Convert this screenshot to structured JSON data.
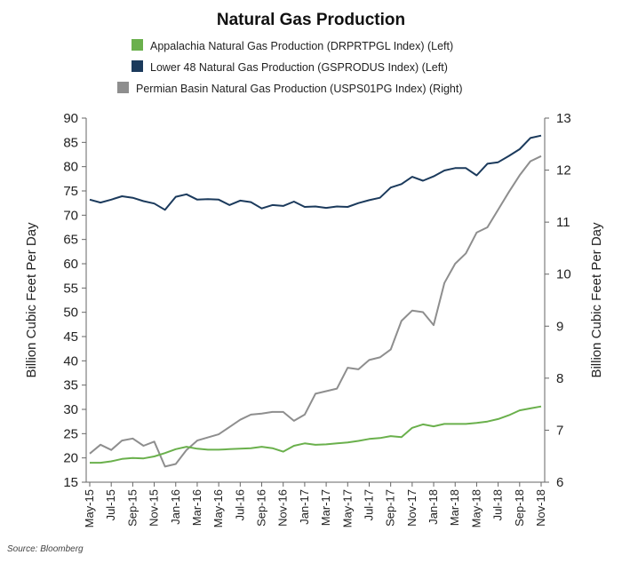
{
  "chart_data": {
    "type": "line",
    "title": "Natural Gas Production",
    "source": "Source: Bloomberg",
    "ylabel_left": "Billion Cubic Feet Per Day",
    "ylabel_right": "Billion Cubic Feet Per Day",
    "ylim_left": [
      15,
      90
    ],
    "ylim_right": [
      6,
      13
    ],
    "yticks_left": [
      "15",
      "20",
      "25",
      "30",
      "35",
      "40",
      "45",
      "50",
      "55",
      "60",
      "65",
      "70",
      "75",
      "80",
      "85",
      "90"
    ],
    "yticks_right": [
      "6",
      "7",
      "8",
      "9",
      "10",
      "11",
      "12",
      "13"
    ],
    "x_tick_labels": [
      "May-15",
      "Jul-15",
      "Sep-15",
      "Nov-15",
      "Jan-16",
      "Mar-16",
      "May-16",
      "Jul-16",
      "Sep-16",
      "Nov-16",
      "Jan-17",
      "Mar-17",
      "May-17",
      "Jul-17",
      "Sep-17",
      "Nov-17",
      "Jan-18",
      "Mar-18",
      "May-18",
      "Jul-18",
      "Sep-18",
      "Nov-18"
    ],
    "x": [
      "May-15",
      "Jun-15",
      "Jul-15",
      "Aug-15",
      "Sep-15",
      "Oct-15",
      "Nov-15",
      "Dec-15",
      "Jan-16",
      "Feb-16",
      "Mar-16",
      "Apr-16",
      "May-16",
      "Jun-16",
      "Jul-16",
      "Aug-16",
      "Sep-16",
      "Oct-16",
      "Nov-16",
      "Dec-16",
      "Jan-17",
      "Feb-17",
      "Mar-17",
      "Apr-17",
      "May-17",
      "Jun-17",
      "Jul-17",
      "Aug-17",
      "Sep-17",
      "Oct-17",
      "Nov-17",
      "Dec-17",
      "Jan-18",
      "Feb-18",
      "Mar-18",
      "Apr-18",
      "May-18",
      "Jun-18",
      "Jul-18",
      "Aug-18",
      "Sep-18",
      "Oct-18",
      "Nov-18"
    ],
    "legend_placement": "top",
    "grid": false,
    "series": [
      {
        "name": "Appalachia Natural Gas Production (DRPRTPGL Index) (Left)",
        "axis": "left",
        "color": "#6ab04c",
        "values": [
          19.0,
          19.0,
          19.3,
          19.8,
          20.0,
          19.9,
          20.3,
          21.0,
          21.8,
          22.3,
          21.9,
          21.7,
          21.7,
          21.8,
          21.9,
          22.0,
          22.3,
          22.0,
          21.3,
          22.5,
          23.0,
          22.7,
          22.8,
          23.0,
          23.2,
          23.5,
          23.9,
          24.1,
          24.5,
          24.3,
          26.2,
          26.9,
          26.5,
          27.0,
          27.0,
          27.0,
          27.2,
          27.5,
          28.0,
          28.8,
          29.8,
          30.2,
          30.6
        ]
      },
      {
        "name": "Lower 48 Natural Gas Production (GSPRODUS Index) (Left)",
        "axis": "left",
        "color": "#1b3a5c",
        "values": [
          73.2,
          72.6,
          73.2,
          73.9,
          73.6,
          72.9,
          72.4,
          71.1,
          73.8,
          74.3,
          73.2,
          73.3,
          73.2,
          72.1,
          73.0,
          72.7,
          71.4,
          72.1,
          71.9,
          72.8,
          71.7,
          71.8,
          71.5,
          71.8,
          71.7,
          72.5,
          73.1,
          73.6,
          75.7,
          76.4,
          77.9,
          77.1,
          78.0,
          79.2,
          79.7,
          79.7,
          78.2,
          80.6,
          80.9,
          82.2,
          83.6,
          85.9,
          86.4
        ]
      },
      {
        "name": "Permian Basin Natural Gas Production (USPS01PG Index) (Right)",
        "axis": "right",
        "color": "#8e8e8e",
        "values": [
          6.55,
          6.72,
          6.62,
          6.8,
          6.84,
          6.7,
          6.78,
          6.3,
          6.35,
          6.62,
          6.8,
          6.86,
          6.92,
          7.06,
          7.2,
          7.3,
          7.32,
          7.35,
          7.35,
          7.18,
          7.3,
          7.7,
          7.75,
          7.8,
          8.2,
          8.17,
          8.35,
          8.4,
          8.55,
          9.1,
          9.3,
          9.27,
          9.02,
          9.83,
          10.2,
          10.4,
          10.8,
          10.9,
          11.24,
          11.58,
          11.9,
          12.17,
          12.27
        ]
      }
    ]
  }
}
